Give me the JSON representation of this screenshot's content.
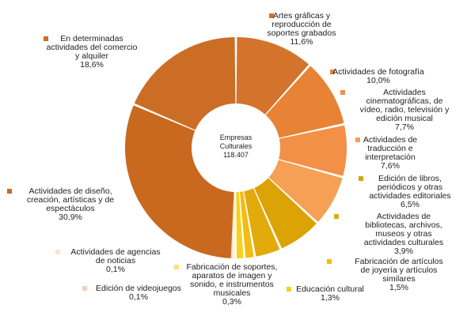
{
  "chart_data": {
    "type": "pie",
    "donut": true,
    "legend": "none",
    "center_label": [
      "Empresas",
      "Culturales",
      "118.407"
    ],
    "slices": [
      {
        "label": [
          "Artes gráficas y",
          "reproducción de",
          "soportes grabados"
        ],
        "value_text": "11,6%",
        "value": 11.6,
        "color": "#d4732b"
      },
      {
        "label": [
          "Actividades de fotografía"
        ],
        "value_text": "10,0%",
        "value": 10.0,
        "color": "#e88336"
      },
      {
        "label": [
          "Actividades",
          "cinematográficas, de",
          "vídeo, radio, televisión y",
          "edición musical"
        ],
        "value_text": "7,7%",
        "value": 7.7,
        "color": "#f29047"
      },
      {
        "label": [
          "Actividades de",
          "traducción e",
          "interpretación"
        ],
        "value_text": "7,6%",
        "value": 7.6,
        "color": "#f6a055"
      },
      {
        "label": [
          "Edición de libros,",
          "periódicos y otras",
          "actividades editoriales"
        ],
        "value_text": "6,5%",
        "value": 6.5,
        "color": "#dba306"
      },
      {
        "label": [
          "Actividades de",
          "bibliotecas, archivos,",
          "museos y otras",
          "actividades culturales"
        ],
        "value_text": "3,9%",
        "value": 3.9,
        "color": "#e3aa0c"
      },
      {
        "label": [
          "Fabricación de artículos",
          "de joyería y artículos",
          "similares"
        ],
        "value_text": "1,5%",
        "value": 1.5,
        "color": "#f4bb10"
      },
      {
        "label": [
          "Educación cultural"
        ],
        "value_text": "1,3%",
        "value": 1.3,
        "color": "#f9cf1c"
      },
      {
        "label": [
          "Fabricación de soportes,",
          "aparatos de imagen y",
          "sonido, e instrumentos",
          "musicales"
        ],
        "value_text": "0,3%",
        "value": 0.3,
        "color": "#fbe07e"
      },
      {
        "label": [
          "Edición de videojuegos"
        ],
        "value_text": "0,1%",
        "value": 0.1,
        "color": "#f6cfbf"
      },
      {
        "label": [
          "Actividades de agencias",
          "de noticias"
        ],
        "value_text": "0,1%",
        "value": 0.1,
        "color": "#fbe3cd"
      },
      {
        "label": [
          "Actividades de diseño,",
          "creación, artísticas y de",
          "espectáculos"
        ],
        "value_text": "30,9%",
        "value": 30.9,
        "color": "#c9681f"
      },
      {
        "label": [
          "En determinadas",
          "actividades del comercio",
          "y alquiler"
        ],
        "value_text": "18,6%",
        "value": 18.6,
        "color": "#cc6d26"
      }
    ]
  }
}
